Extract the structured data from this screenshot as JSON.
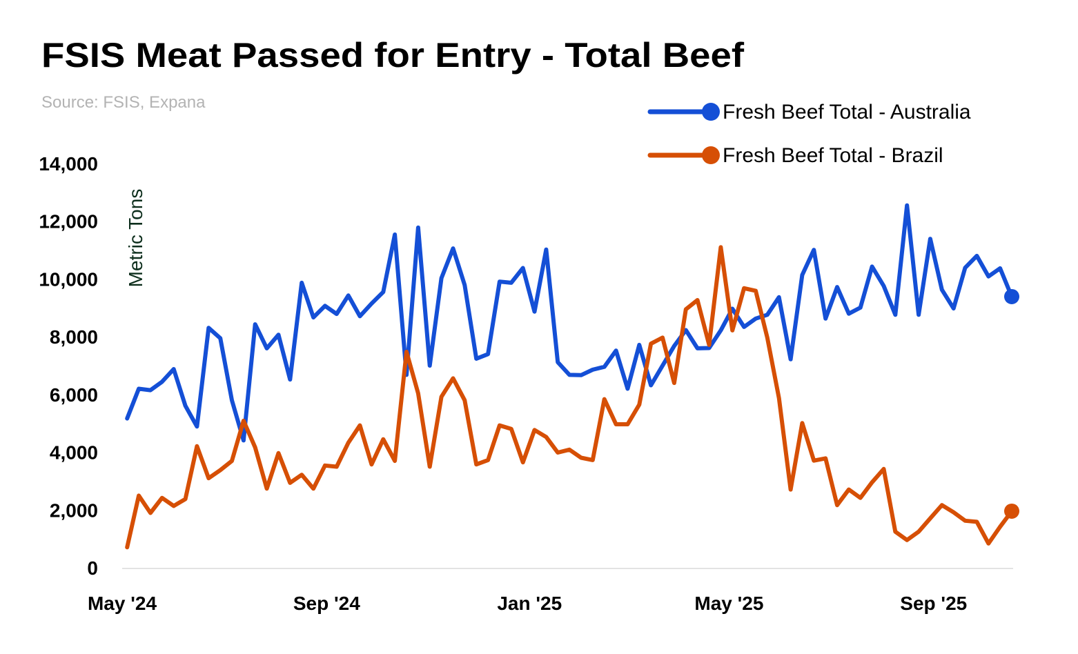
{
  "chart_data": {
    "type": "line",
    "title": "FSIS Meat Passed for Entry - Total Beef",
    "subtitle": "Source: FSIS, Expana",
    "xlabel": "",
    "ylabel": "Metric Tons",
    "ylim": [
      0,
      14000
    ],
    "yticks": [
      0,
      2000,
      4000,
      6000,
      8000,
      10000,
      12000,
      14000
    ],
    "ytick_labels": [
      "0",
      "2,000",
      "4,000",
      "6,000",
      "8,000",
      "10,000",
      "12,000",
      "14,000"
    ],
    "xticks": [
      "2024-05-01",
      "2024-09-01",
      "2025-01-01",
      "2025-05-01",
      "2025-09-01"
    ],
    "xtick_labels": [
      "May '24",
      "Sep '24",
      "Jan '25",
      "May '25",
      "Sep '25"
    ],
    "xlim": [
      "2024-05-01",
      "2025-10-18"
    ],
    "grid": false,
    "legend_position": "top-right",
    "x": [
      "2024-05-04",
      "2024-05-11",
      "2024-05-18",
      "2024-05-25",
      "2024-06-01",
      "2024-06-08",
      "2024-06-15",
      "2024-06-22",
      "2024-06-29",
      "2024-07-06",
      "2024-07-13",
      "2024-07-20",
      "2024-07-27",
      "2024-08-03",
      "2024-08-10",
      "2024-08-17",
      "2024-08-24",
      "2024-08-31",
      "2024-09-07",
      "2024-09-14",
      "2024-09-21",
      "2024-09-28",
      "2024-10-05",
      "2024-10-12",
      "2024-10-19",
      "2024-10-26",
      "2024-11-02",
      "2024-11-09",
      "2024-11-16",
      "2024-11-23",
      "2024-11-30",
      "2024-12-07",
      "2024-12-14",
      "2024-12-21",
      "2024-12-28",
      "2025-01-04",
      "2025-01-11",
      "2025-01-18",
      "2025-01-25",
      "2025-02-01",
      "2025-02-08",
      "2025-02-15",
      "2025-02-22",
      "2025-03-01",
      "2025-03-08",
      "2025-03-15",
      "2025-03-22",
      "2025-03-29",
      "2025-04-05",
      "2025-04-12",
      "2025-04-19",
      "2025-04-26",
      "2025-05-03",
      "2025-05-10",
      "2025-05-17",
      "2025-05-24",
      "2025-05-31",
      "2025-06-07",
      "2025-06-14",
      "2025-06-21",
      "2025-06-28",
      "2025-07-05",
      "2025-07-12",
      "2025-07-19",
      "2025-07-26",
      "2025-08-02",
      "2025-08-09",
      "2025-08-16",
      "2025-08-23",
      "2025-08-30",
      "2025-09-06",
      "2025-09-13",
      "2025-09-20",
      "2025-09-27",
      "2025-10-04",
      "2025-10-11",
      "2025-10-18"
    ],
    "series": [
      {
        "name": "Fresh Beef Total - Australia",
        "color": "#144fd6",
        "values": [
          5170,
          6200,
          6150,
          6440,
          6880,
          5610,
          4890,
          8310,
          7950,
          5800,
          4410,
          8430,
          7600,
          8070,
          6520,
          9870,
          8670,
          9070,
          8790,
          9430,
          8710,
          9150,
          9550,
          11540,
          6680,
          11780,
          7000,
          10030,
          11060,
          9790,
          7240,
          7400,
          9910,
          9870,
          10380,
          8870,
          11020,
          7120,
          6680,
          6670,
          6860,
          6960,
          7520,
          6200,
          7720,
          6320,
          7000,
          7680,
          8230,
          7600,
          7610,
          8220,
          8970,
          8340,
          8630,
          8760,
          9370,
          7220,
          10140,
          11010,
          8630,
          9720,
          8800,
          9010,
          10430,
          9760,
          8760,
          12550,
          8760,
          11390,
          9630,
          8980,
          10390,
          10800,
          10090,
          10370,
          9390
        ]
      },
      {
        "name": "Fresh Beef Total - Brazil",
        "color": "#d64f05",
        "values": [
          710,
          2500,
          1900,
          2420,
          2140,
          2380,
          4210,
          3100,
          3380,
          3700,
          5090,
          4170,
          2740,
          3970,
          2940,
          3220,
          2740,
          3540,
          3500,
          4330,
          4930,
          3580,
          4450,
          3700,
          7480,
          6040,
          3500,
          5920,
          6560,
          5800,
          3580,
          3730,
          4930,
          4810,
          3650,
          4770,
          4530,
          3990,
          4090,
          3810,
          3730,
          5840,
          4970,
          4970,
          5650,
          7760,
          7970,
          6400,
          8950,
          9270,
          7720,
          11100,
          8220,
          9680,
          9590,
          7970,
          5880,
          2710,
          5010,
          3710,
          3790,
          2170,
          2710,
          2420,
          2960,
          3420,
          1250,
          960,
          1250,
          1710,
          2170,
          1920,
          1630,
          1590,
          840,
          1420,
          1960
        ]
      }
    ]
  }
}
